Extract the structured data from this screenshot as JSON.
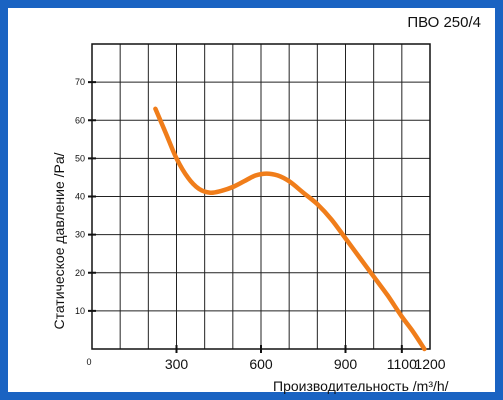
{
  "model_title": "ПВО 250/4",
  "chart_data": {
    "type": "line",
    "title": "",
    "xlabel": "Производительность /m³/h/",
    "ylabel": "Статическое давление /Pa/",
    "xlim": [
      0,
      1200
    ],
    "ylim": [
      0,
      80
    ],
    "x_ticks": [
      {
        "value": 0,
        "label": "0"
      },
      {
        "value": 300,
        "label": "300"
      },
      {
        "value": 600,
        "label": "600"
      },
      {
        "value": 900,
        "label": "900"
      },
      {
        "value": 1100,
        "label": "1100"
      },
      {
        "value": 1200,
        "label": "1200"
      }
    ],
    "y_ticks": [
      {
        "value": 10,
        "label": "10"
      },
      {
        "value": 20,
        "label": "20"
      },
      {
        "value": 30,
        "label": "30"
      },
      {
        "value": 40,
        "label": "40"
      },
      {
        "value": 50,
        "label": "50"
      },
      {
        "value": 60,
        "label": "60"
      },
      {
        "value": 70,
        "label": "70"
      }
    ],
    "grid": true,
    "series": [
      {
        "color": "#f07d1a",
        "x": [
          225,
          260,
          300,
          340,
          380,
          420,
          460,
          500,
          540,
          580,
          620,
          660,
          700,
          750,
          800,
          850,
          900,
          950,
          1000,
          1050,
          1100,
          1140,
          1180
        ],
        "y": [
          63,
          57,
          50,
          45,
          42,
          41,
          41.5,
          42.5,
          44,
          45.5,
          46,
          45.5,
          44,
          41,
          38,
          34,
          29,
          24,
          19,
          14,
          8.5,
          4.5,
          0
        ]
      }
    ]
  }
}
